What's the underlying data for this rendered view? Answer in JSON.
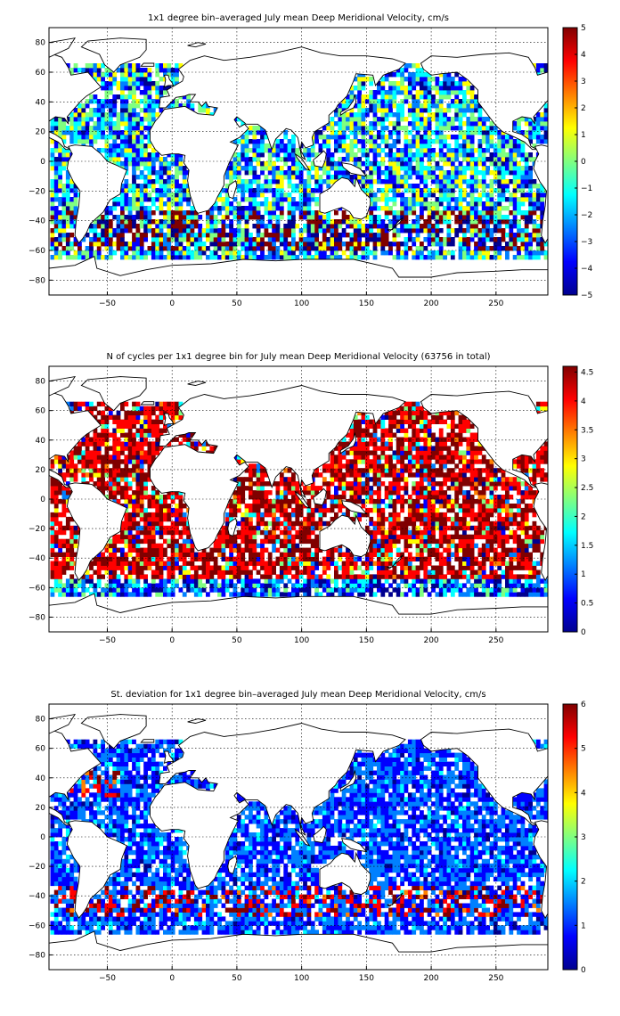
{
  "colormap": [
    "#00008f",
    "#0000ff",
    "#0080ff",
    "#00ffff",
    "#80ff80",
    "#ffff00",
    "#ff8000",
    "#ff0000",
    "#800000"
  ],
  "chart_data": [
    {
      "type": "heatmap",
      "title": "1x1 degree bin–averaged July mean Deep Meridional Velocity, cm/s",
      "xlabel": "",
      "ylabel": "",
      "xlim": [
        -95,
        290
      ],
      "ylim": [
        -90,
        90
      ],
      "xticks": [
        -50,
        0,
        50,
        100,
        150,
        200,
        250
      ],
      "xtick_labels": [
        "−50",
        "0",
        "50",
        "100",
        "150",
        "200",
        "250"
      ],
      "yticks": [
        -80,
        -60,
        -40,
        -20,
        0,
        20,
        40,
        60,
        80
      ],
      "ytick_labels": [
        "−80",
        "−60",
        "−40",
        "−20",
        "0",
        "20",
        "40",
        "60",
        "80"
      ],
      "grid": true,
      "colorbar": {
        "min": -5,
        "max": 5,
        "ticks": [
          -5,
          -4,
          -3,
          -2,
          -1,
          0,
          1,
          2,
          3,
          4,
          5
        ],
        "tick_labels": [
          "−5",
          "−4",
          "−3",
          "−2",
          "−1",
          "0",
          "1",
          "2",
          "3",
          "4",
          "5"
        ]
      }
    },
    {
      "type": "heatmap",
      "title": "N of cycles per 1x1 degree bin for July mean Deep Meridional Velocity (63756 in total)",
      "xlabel": "",
      "ylabel": "",
      "xlim": [
        -95,
        290
      ],
      "ylim": [
        -90,
        90
      ],
      "xticks": [
        -50,
        0,
        50,
        100,
        150,
        200,
        250
      ],
      "xtick_labels": [
        "−50",
        "0",
        "50",
        "100",
        "150",
        "200",
        "250"
      ],
      "yticks": [
        -80,
        -60,
        -40,
        -20,
        0,
        20,
        40,
        60,
        80
      ],
      "ytick_labels": [
        "−80",
        "−60",
        "−40",
        "−20",
        "0",
        "20",
        "40",
        "60",
        "80"
      ],
      "grid": true,
      "colorbar": {
        "min": 0,
        "max": 4.6,
        "ticks": [
          0,
          0.5,
          1,
          1.5,
          2,
          2.5,
          3,
          3.5,
          4,
          4.5
        ],
        "tick_labels": [
          "0",
          "0.5",
          "1",
          "1.5",
          "2",
          "2.5",
          "3",
          "3.5",
          "4",
          "4.5"
        ]
      }
    },
    {
      "type": "heatmap",
      "title": "St. deviation for 1x1 degree bin–averaged July mean Deep Meridional Velocity, cm/s",
      "xlabel": "",
      "ylabel": "",
      "xlim": [
        -95,
        290
      ],
      "ylim": [
        -90,
        90
      ],
      "xticks": [
        -50,
        0,
        50,
        100,
        150,
        200,
        250
      ],
      "xtick_labels": [
        "−50",
        "0",
        "50",
        "100",
        "150",
        "200",
        "250"
      ],
      "yticks": [
        -80,
        -60,
        -40,
        -20,
        0,
        20,
        40,
        60,
        80
      ],
      "ytick_labels": [
        "−80",
        "−60",
        "−40",
        "−20",
        "0",
        "20",
        "40",
        "60",
        "80"
      ],
      "grid": true,
      "colorbar": {
        "min": 0,
        "max": 6,
        "ticks": [
          0,
          1,
          2,
          3,
          4,
          5,
          6
        ],
        "tick_labels": [
          "0",
          "1",
          "2",
          "3",
          "4",
          "5",
          "6"
        ]
      }
    }
  ]
}
